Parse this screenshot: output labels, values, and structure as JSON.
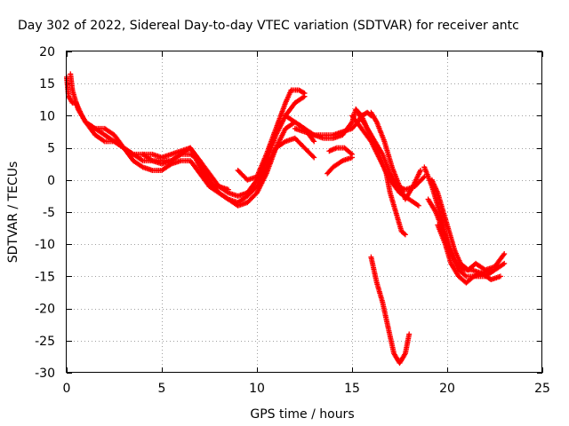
{
  "chart_data": {
    "type": "scatter",
    "title": "Day 302 of 2022, Sidereal Day-to-day VTEC variation (SDTVAR) for receiver antc",
    "xlabel": "GPS time / hours",
    "ylabel": "SDTVAR / TECUs",
    "xlim": [
      0,
      25
    ],
    "ylim": [
      -30,
      20
    ],
    "xticks": [
      "0",
      "5",
      "10",
      "15",
      "20",
      "25"
    ],
    "yticks": [
      "20",
      "15",
      "10",
      "5",
      "0",
      "-5",
      "-10",
      "-15",
      "-20",
      "-25",
      "-30"
    ],
    "grid": true,
    "marker": "+",
    "series": [
      {
        "name": "SDTVAR",
        "color": "#ff0000",
        "tracks": [
          [
            [
              0,
              16
            ],
            [
              0.1,
              13
            ],
            [
              0.3,
              12
            ],
            [
              0.5,
              12
            ],
            [
              0.8,
              10
            ],
            [
              1,
              9
            ],
            [
              1.5,
              7
            ],
            [
              2,
              6
            ],
            [
              2.5,
              6
            ],
            [
              3,
              5
            ],
            [
              3.5,
              4
            ],
            [
              4,
              3
            ],
            [
              4.5,
              3
            ],
            [
              5,
              3
            ],
            [
              5.5,
              3
            ],
            [
              6,
              4
            ],
            [
              6.5,
              4
            ],
            [
              7,
              3
            ],
            [
              7.5,
              1
            ],
            [
              8,
              -1
            ],
            [
              8.5,
              -2
            ],
            [
              9,
              -2.5
            ],
            [
              9.5,
              -2
            ],
            [
              10,
              0
            ],
            [
              10.5,
              3
            ],
            [
              11,
              7
            ],
            [
              11.5,
              10
            ],
            [
              12,
              12
            ],
            [
              12.5,
              13
            ]
          ],
          [
            [
              0.2,
              16.5
            ],
            [
              0.3,
              14
            ],
            [
              0.6,
              11
            ],
            [
              1,
              9
            ],
            [
              1.5,
              8
            ],
            [
              2,
              7
            ],
            [
              2.5,
              6
            ],
            [
              3,
              5
            ],
            [
              3.5,
              4
            ],
            [
              4,
              4
            ],
            [
              4.5,
              3
            ],
            [
              5,
              2.5
            ],
            [
              5.5,
              3
            ],
            [
              6,
              4
            ],
            [
              6.5,
              5
            ],
            [
              7,
              3
            ],
            [
              7.5,
              0
            ],
            [
              8,
              -2
            ],
            [
              8.5,
              -3
            ],
            [
              9,
              -3.5
            ],
            [
              9.5,
              -2.5
            ],
            [
              10,
              -1
            ],
            [
              10.5,
              2
            ],
            [
              11,
              5
            ],
            [
              11.5,
              8
            ],
            [
              12,
              9
            ],
            [
              12.5,
              8
            ],
            [
              13,
              6
            ]
          ],
          [
            [
              1,
              9
            ],
            [
              1.5,
              8
            ],
            [
              2,
              8
            ],
            [
              2.5,
              7
            ],
            [
              3,
              5
            ],
            [
              3.5,
              3
            ],
            [
              4,
              2
            ],
            [
              4.5,
              1.5
            ],
            [
              5,
              1.5
            ],
            [
              5.5,
              2.5
            ],
            [
              6,
              3
            ],
            [
              6.5,
              3
            ],
            [
              7,
              1
            ],
            [
              7.5,
              -1
            ],
            [
              8,
              -2
            ],
            [
              8.5,
              -3
            ],
            [
              9,
              -4
            ],
            [
              9.5,
              -3.5
            ],
            [
              10,
              -2
            ],
            [
              10.5,
              1
            ],
            [
              11,
              5
            ],
            [
              11.5,
              6
            ],
            [
              12,
              6.5
            ],
            [
              12.5,
              5
            ],
            [
              13,
              3.5
            ]
          ],
          [
            [
              4,
              4
            ],
            [
              4.5,
              4
            ],
            [
              5,
              3.5
            ],
            [
              5.5,
              4
            ],
            [
              6,
              4.5
            ],
            [
              6.5,
              5
            ],
            [
              7,
              2
            ],
            [
              7.5,
              -1
            ],
            [
              8,
              -1
            ],
            [
              8.5,
              -1.5
            ]
          ],
          [
            [
              9,
              1.5
            ],
            [
              9.5,
              0
            ],
            [
              10,
              0.5
            ],
            [
              10.5,
              4
            ],
            [
              11,
              8
            ],
            [
              11.5,
              12
            ],
            [
              11.8,
              14
            ],
            [
              12.2,
              14
            ],
            [
              12.5,
              13.5
            ]
          ],
          [
            [
              11.5,
              10
            ],
            [
              12,
              9
            ],
            [
              12.5,
              8
            ],
            [
              13,
              7
            ],
            [
              13.5,
              7
            ],
            [
              14,
              7
            ],
            [
              14.5,
              7.5
            ],
            [
              15,
              8
            ],
            [
              15.3,
              9
            ],
            [
              15.5,
              10
            ],
            [
              15.8,
              10.5
            ],
            [
              16,
              10
            ]
          ],
          [
            [
              12,
              8
            ],
            [
              12.5,
              7.5
            ],
            [
              13,
              7
            ],
            [
              13.5,
              6.5
            ],
            [
              14,
              6.5
            ],
            [
              14.5,
              7
            ],
            [
              15,
              9
            ],
            [
              15.2,
              11
            ],
            [
              15.5,
              10
            ]
          ],
          [
            [
              13.7,
              1
            ],
            [
              14,
              2
            ],
            [
              14.5,
              3
            ],
            [
              15,
              3.5
            ]
          ],
          [
            [
              13.8,
              4.5
            ],
            [
              14.2,
              5
            ],
            [
              14.6,
              5
            ],
            [
              15,
              4
            ]
          ],
          [
            [
              15,
              10
            ],
            [
              15.5,
              8
            ],
            [
              16,
              6
            ],
            [
              16.5,
              3
            ],
            [
              17,
              0
            ],
            [
              17.5,
              -2
            ],
            [
              18,
              -3
            ],
            [
              18.5,
              -4
            ]
          ],
          [
            [
              15.2,
              11
            ],
            [
              15.6,
              9
            ],
            [
              16,
              7
            ],
            [
              16.4,
              4
            ],
            [
              16.8,
              1
            ],
            [
              17,
              -2
            ],
            [
              17.3,
              -5
            ],
            [
              17.6,
              -8
            ],
            [
              17.8,
              -8.5
            ]
          ],
          [
            [
              15.5,
              10
            ],
            [
              15.8,
              8
            ],
            [
              16.2,
              6
            ],
            [
              16.6,
              4
            ],
            [
              17,
              1
            ],
            [
              17.4,
              -1
            ],
            [
              17.8,
              -1.5
            ],
            [
              18.3,
              -1
            ],
            [
              18.8,
              0.5
            ]
          ],
          [
            [
              16,
              10.5
            ],
            [
              16.3,
              9
            ],
            [
              16.7,
              6
            ],
            [
              17.1,
              2
            ],
            [
              17.5,
              -1
            ],
            [
              17.8,
              -3
            ],
            [
              18.2,
              -1
            ],
            [
              18.6,
              1.5
            ]
          ],
          [
            [
              16,
              -12
            ],
            [
              16.3,
              -16
            ],
            [
              16.6,
              -19
            ],
            [
              16.9,
              -23
            ],
            [
              17.2,
              -27
            ],
            [
              17.5,
              -28.5
            ],
            [
              17.8,
              -27
            ],
            [
              18,
              -24
            ]
          ],
          [
            [
              18.8,
              2
            ],
            [
              19.2,
              -1
            ],
            [
              19.5,
              -4
            ],
            [
              19.8,
              -7
            ],
            [
              20,
              -10
            ],
            [
              20.3,
              -12
            ],
            [
              20.6,
              -14
            ],
            [
              21,
              -15
            ],
            [
              21.5,
              -15
            ],
            [
              22,
              -15
            ],
            [
              22.5,
              -14
            ],
            [
              23,
              -13
            ]
          ],
          [
            [
              19,
              -3
            ],
            [
              19.4,
              -5
            ],
            [
              19.8,
              -8
            ],
            [
              20.2,
              -11
            ],
            [
              20.5,
              -13
            ],
            [
              20.9,
              -14
            ],
            [
              21.3,
              -14
            ],
            [
              21.8,
              -14.5
            ],
            [
              22.3,
              -14
            ]
          ],
          [
            [
              19.2,
              0
            ],
            [
              19.5,
              -2
            ],
            [
              19.8,
              -5
            ],
            [
              20.1,
              -8
            ],
            [
              20.4,
              -11
            ],
            [
              20.7,
              -13
            ],
            [
              21.1,
              -14
            ],
            [
              21.5,
              -13
            ],
            [
              22,
              -14
            ],
            [
              22.5,
              -13.5
            ],
            [
              23,
              -11.5
            ]
          ],
          [
            [
              19.5,
              -7
            ],
            [
              19.9,
              -10
            ],
            [
              20.2,
              -13
            ],
            [
              20.6,
              -15
            ],
            [
              21,
              -16
            ],
            [
              21.4,
              -15
            ],
            [
              21.8,
              -14.5
            ],
            [
              22.3,
              -15.5
            ],
            [
              22.8,
              -15
            ]
          ]
        ]
      }
    ]
  }
}
